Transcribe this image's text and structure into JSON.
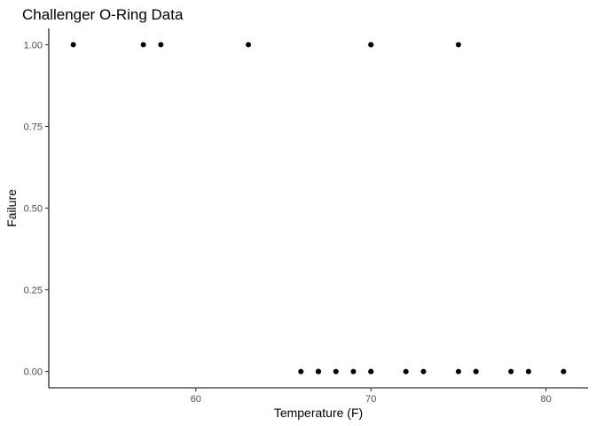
{
  "chart_data": {
    "type": "scatter",
    "title": "Challenger O-Ring Data",
    "xlabel": "Temperature (F)",
    "ylabel": "Failure",
    "xlim": [
      51.6,
      82.4
    ],
    "ylim": [
      -0.05,
      1.05
    ],
    "x_ticks": [
      60,
      70,
      80
    ],
    "x_tick_labels": [
      "60",
      "70",
      "80"
    ],
    "y_ticks": [
      0,
      0.25,
      0.5,
      0.75,
      1
    ],
    "y_tick_labels": [
      "0.00",
      "0.25",
      "0.50",
      "0.75",
      "1.00"
    ],
    "grid": false,
    "legend": "none",
    "point_color": "#000000",
    "points": [
      {
        "x": 53,
        "y": 1
      },
      {
        "x": 57,
        "y": 1
      },
      {
        "x": 58,
        "y": 1
      },
      {
        "x": 63,
        "y": 1
      },
      {
        "x": 66,
        "y": 0
      },
      {
        "x": 67,
        "y": 0
      },
      {
        "x": 67,
        "y": 0
      },
      {
        "x": 67,
        "y": 0
      },
      {
        "x": 68,
        "y": 0
      },
      {
        "x": 69,
        "y": 0
      },
      {
        "x": 70,
        "y": 1
      },
      {
        "x": 70,
        "y": 1
      },
      {
        "x": 70,
        "y": 0
      },
      {
        "x": 70,
        "y": 0
      },
      {
        "x": 72,
        "y": 0
      },
      {
        "x": 73,
        "y": 0
      },
      {
        "x": 75,
        "y": 0
      },
      {
        "x": 75,
        "y": 1
      },
      {
        "x": 76,
        "y": 0
      },
      {
        "x": 76,
        "y": 0
      },
      {
        "x": 78,
        "y": 0
      },
      {
        "x": 79,
        "y": 0
      },
      {
        "x": 81,
        "y": 0
      }
    ]
  }
}
